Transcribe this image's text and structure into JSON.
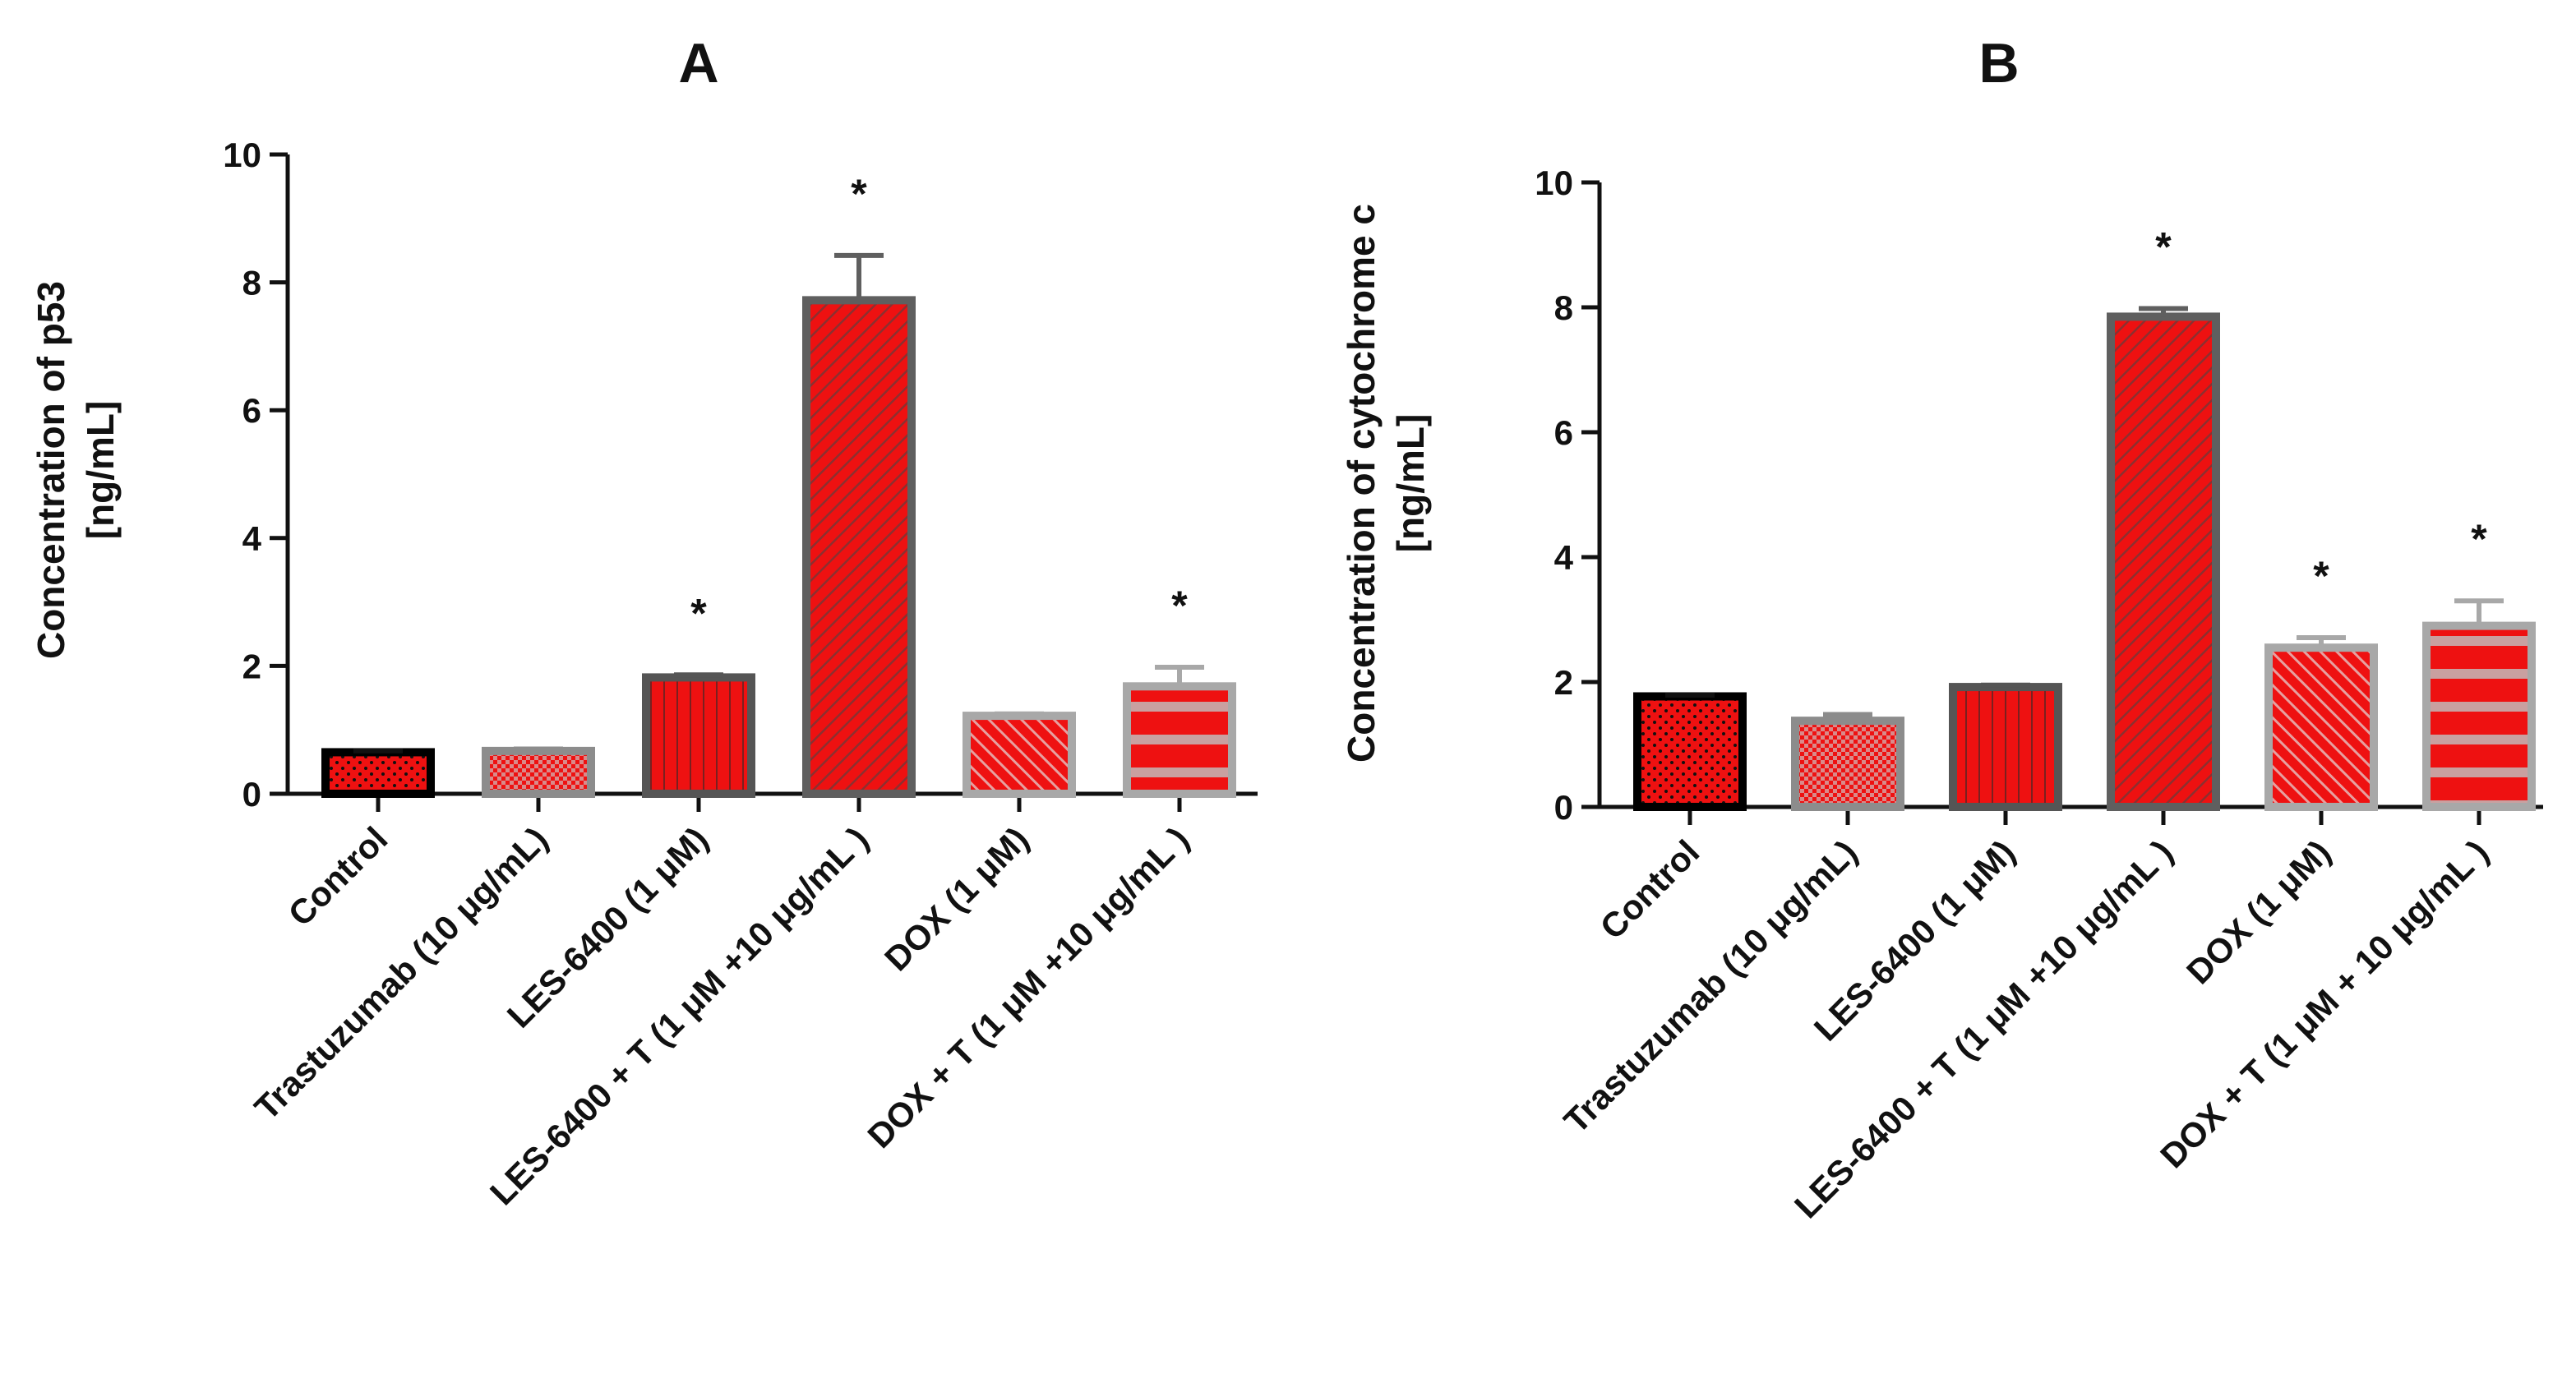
{
  "chart_data": [
    {
      "type": "bar",
      "title": "A",
      "ylabel": [
        "Concentration of p53",
        "[ng/mL]"
      ],
      "ylim": [
        0,
        10
      ],
      "yticks": [
        0,
        2,
        4,
        6,
        8,
        10
      ],
      "categories": [
        "Control",
        "Trastuzumab (10 μg/mL)",
        "LES-6400 (1 μM)",
        "LES-6400 + T (1 μM +10 μg/mL )",
        "DOX  (1 μM)",
        "DOX + T (1 μM +10 μg/mL )"
      ],
      "values": [
        0.65,
        0.67,
        1.82,
        7.72,
        1.22,
        1.68
      ],
      "errors": [
        0.02,
        0.03,
        0.04,
        0.7,
        0.03,
        0.3
      ],
      "significance": [
        "",
        "",
        "*",
        "*",
        "",
        "*"
      ],
      "patterns": [
        "dots",
        "checker",
        "vertical-lines",
        "diagonal-lines",
        "diagonal-lines-reverse",
        "horizontal-stripes"
      ],
      "fill_color": "#ee1111",
      "border_colors": [
        "#000000",
        "#8c8c8c",
        "#555555",
        "#5f5f5f",
        "#a8a8a8",
        "#a8a8a8"
      ]
    },
    {
      "type": "bar",
      "title": "B",
      "ylabel": [
        "Concentration of cytochrome c",
        "[ng/mL]"
      ],
      "ylim": [
        0,
        10
      ],
      "yticks": [
        0,
        2,
        4,
        6,
        8,
        10
      ],
      "categories": [
        "Control",
        "Trastuzumab (10 μg/mL)",
        "LES-6400 (1 μM)",
        "LES-6400 + T (1 μM +10 μg/mL )",
        "DOX (1 μM)",
        "DOX + T (1 μM + 10 μg/mL )"
      ],
      "values": [
        1.77,
        1.38,
        1.92,
        7.85,
        2.55,
        2.9
      ],
      "errors": [
        0.02,
        0.1,
        0.03,
        0.13,
        0.16,
        0.4
      ],
      "significance": [
        "",
        "",
        "",
        "*",
        "*",
        "*"
      ],
      "patterns": [
        "dots",
        "checker",
        "vertical-lines",
        "diagonal-lines",
        "diagonal-lines-reverse",
        "horizontal-stripes"
      ],
      "fill_color": "#ee1111",
      "border_colors": [
        "#000000",
        "#8c8c8c",
        "#555555",
        "#5f5f5f",
        "#a8a8a8",
        "#a8a8a8"
      ]
    }
  ]
}
